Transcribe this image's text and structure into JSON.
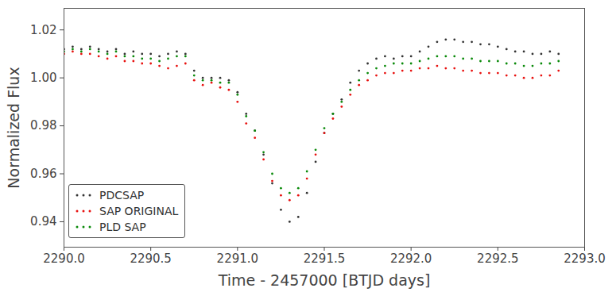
{
  "chart_data": {
    "type": "scatter",
    "x_label": "Time - 2457000 [BTJD days]",
    "y_label": "Normalized Flux",
    "xlim": [
      2290.0,
      2293.0
    ],
    "ylim": [
      0.9294,
      1.029
    ],
    "xticks": [
      {
        "value": 2290.0,
        "label": "2290.0"
      },
      {
        "value": 2290.5,
        "label": "2290.5"
      },
      {
        "value": 2291.0,
        "label": "2291.0"
      },
      {
        "value": 2291.5,
        "label": "2291.5"
      },
      {
        "value": 2292.0,
        "label": "2292.0"
      },
      {
        "value": 2292.5,
        "label": "2292.5"
      },
      {
        "value": 2293.0,
        "label": "2293.0"
      }
    ],
    "yticks": [
      0.94,
      0.96,
      0.98,
      {
        "value": 1.0,
        "label": "1.00"
      },
      1.02
    ],
    "grid": false,
    "legend": "lower left",
    "marker": "o",
    "x": [
      2290.0,
      2290.05,
      2290.1,
      2290.15,
      2290.2,
      2290.25,
      2290.3,
      2290.35,
      2290.4,
      2290.45,
      2290.5,
      2290.55,
      2290.6,
      2290.65,
      2290.7,
      2290.75,
      2290.8,
      2290.85,
      2290.9,
      2290.95,
      2291.0,
      2291.05,
      2291.1,
      2291.15,
      2291.2,
      2291.25,
      2291.3,
      2291.35,
      2291.4,
      2291.45,
      2291.5,
      2291.55,
      2291.6,
      2291.65,
      2291.7,
      2291.75,
      2291.8,
      2291.85,
      2291.9,
      2291.95,
      2292.0,
      2292.05,
      2292.1,
      2292.15,
      2292.2,
      2292.25,
      2292.3,
      2292.35,
      2292.4,
      2292.45,
      2292.5,
      2292.55,
      2292.6,
      2292.65,
      2292.7,
      2292.75,
      2292.8,
      2292.85
    ],
    "series": [
      {
        "name": "PDCSAP",
        "color": "#333333",
        "values": [
          1.012,
          1.013,
          1.012,
          1.013,
          1.012,
          1.011,
          1.012,
          1.01,
          1.011,
          1.01,
          1.01,
          1.009,
          1.01,
          1.011,
          1.01,
          1.003,
          1.0,
          1.0,
          1.0,
          0.999,
          0.994,
          0.985,
          0.978,
          0.968,
          0.956,
          0.945,
          0.94,
          0.942,
          0.952,
          0.965,
          0.977,
          0.985,
          0.991,
          0.998,
          1.003,
          1.006,
          1.008,
          1.009,
          1.008,
          1.009,
          1.009,
          1.011,
          1.013,
          1.015,
          1.016,
          1.016,
          1.015,
          1.015,
          1.014,
          1.014,
          1.013,
          1.012,
          1.011,
          1.011,
          1.01,
          1.01,
          1.011,
          1.01
        ]
      },
      {
        "name": "SAP ORIGINAL",
        "color": "#e8110f",
        "values": [
          1.01,
          1.011,
          1.01,
          1.01,
          1.009,
          1.008,
          1.009,
          1.007,
          1.007,
          1.006,
          1.006,
          1.005,
          1.004,
          1.005,
          1.006,
          0.999,
          0.997,
          0.998,
          0.996,
          0.995,
          0.99,
          0.981,
          0.975,
          0.966,
          0.957,
          0.951,
          0.949,
          0.951,
          0.958,
          0.968,
          0.977,
          0.983,
          0.988,
          0.993,
          0.997,
          0.999,
          1.001,
          1.002,
          1.002,
          1.003,
          1.003,
          1.004,
          1.004,
          1.005,
          1.004,
          1.004,
          1.003,
          1.003,
          1.002,
          1.002,
          1.002,
          1.001,
          1.001,
          1.0,
          1.0,
          1.001,
          1.001,
          1.003
        ]
      },
      {
        "name": "PLD SAP",
        "color": "#0a8a0a",
        "values": [
          1.011,
          1.012,
          1.011,
          1.012,
          1.011,
          1.01,
          1.011,
          1.009,
          1.009,
          1.008,
          1.008,
          1.007,
          1.008,
          1.009,
          1.009,
          1.001,
          0.999,
          0.999,
          0.998,
          0.998,
          0.993,
          0.984,
          0.978,
          0.969,
          0.96,
          0.954,
          0.952,
          0.954,
          0.961,
          0.97,
          0.979,
          0.985,
          0.99,
          0.995,
          0.999,
          1.002,
          1.004,
          1.005,
          1.006,
          1.006,
          1.006,
          1.007,
          1.008,
          1.009,
          1.009,
          1.009,
          1.008,
          1.008,
          1.007,
          1.007,
          1.007,
          1.006,
          1.006,
          1.005,
          1.005,
          1.006,
          1.006,
          1.007
        ]
      }
    ]
  }
}
